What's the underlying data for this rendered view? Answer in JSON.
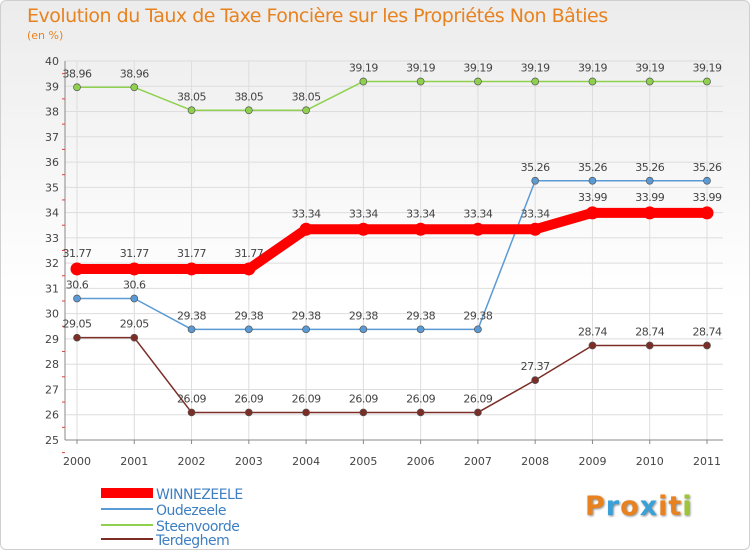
{
  "title": "Evolution du Taux de Taxe Foncière sur les Propriétés Non Bâties",
  "subtitle": "(en %)",
  "logo": {
    "letters": [
      "P",
      "r",
      "o",
      "x",
      "i",
      "t",
      "i"
    ],
    "colors": [
      "#e8821e",
      "#3aa0d8",
      "#e8821e",
      "#3aa0d8",
      "#e8821e",
      "#e8821e",
      "#9dc43a"
    ]
  },
  "chart_data": {
    "type": "line",
    "title": "Evolution du Taux de Taxe Foncière sur les Propriétés Non Bâties",
    "ylabel": "(en %)",
    "xlabel": "",
    "ylim": [
      25,
      40
    ],
    "yticks": [
      "25",
      "26",
      "27",
      "28",
      "29",
      "30",
      "31",
      "32",
      "33",
      "34",
      "35",
      "36",
      "37",
      "38",
      "39",
      "40"
    ],
    "categories": [
      "2000",
      "2001",
      "2002",
      "2003",
      "2004",
      "2005",
      "2006",
      "2007",
      "2008",
      "2009",
      "2010",
      "2011"
    ],
    "grid": true,
    "legend_position": "bottom-left",
    "series": [
      {
        "name": "WINNEZEELE",
        "color": "#ff0000",
        "values": [
          31.77,
          31.77,
          31.77,
          31.77,
          33.34,
          33.34,
          33.34,
          33.34,
          33.34,
          33.99,
          33.99,
          33.99
        ],
        "labels": [
          "31.77",
          "31.77",
          "31.77",
          "31.77",
          "33.34",
          "33.34",
          "33.34",
          "33.34",
          "33.34",
          "33.99",
          "33.99",
          "33.99"
        ]
      },
      {
        "name": "Oudezeele",
        "color": "#5b9bd5",
        "values": [
          30.6,
          30.6,
          29.38,
          29.38,
          29.38,
          29.38,
          29.38,
          29.38,
          35.26,
          35.26,
          35.26,
          35.26
        ],
        "labels": [
          "30.6",
          "30.6",
          "29.38",
          "29.38",
          "29.38",
          "29.38",
          "29.38",
          "29.38",
          "35.26",
          "35.26",
          "35.26",
          "35.26"
        ]
      },
      {
        "name": "Steenvoorde",
        "color": "#8fd14f",
        "values": [
          38.96,
          38.96,
          38.05,
          38.05,
          38.05,
          39.19,
          39.19,
          39.19,
          39.19,
          39.19,
          39.19,
          39.19
        ],
        "labels": [
          "38.96",
          "38.96",
          "38.05",
          "38.05",
          "38.05",
          "39.19",
          "39.19",
          "39.19",
          "39.19",
          "39.19",
          "39.19",
          "39.19"
        ]
      },
      {
        "name": "Terdeghem",
        "color": "#7b2d26",
        "values": [
          29.05,
          29.05,
          26.09,
          26.09,
          26.09,
          26.09,
          26.09,
          26.09,
          27.37,
          28.74,
          28.74,
          28.74
        ],
        "labels": [
          "29.05",
          "29.05",
          "26.09",
          "26.09",
          "26.09",
          "26.09",
          "26.09",
          "26.09",
          "27.37",
          "28.74",
          "28.74",
          "28.74"
        ]
      }
    ]
  }
}
